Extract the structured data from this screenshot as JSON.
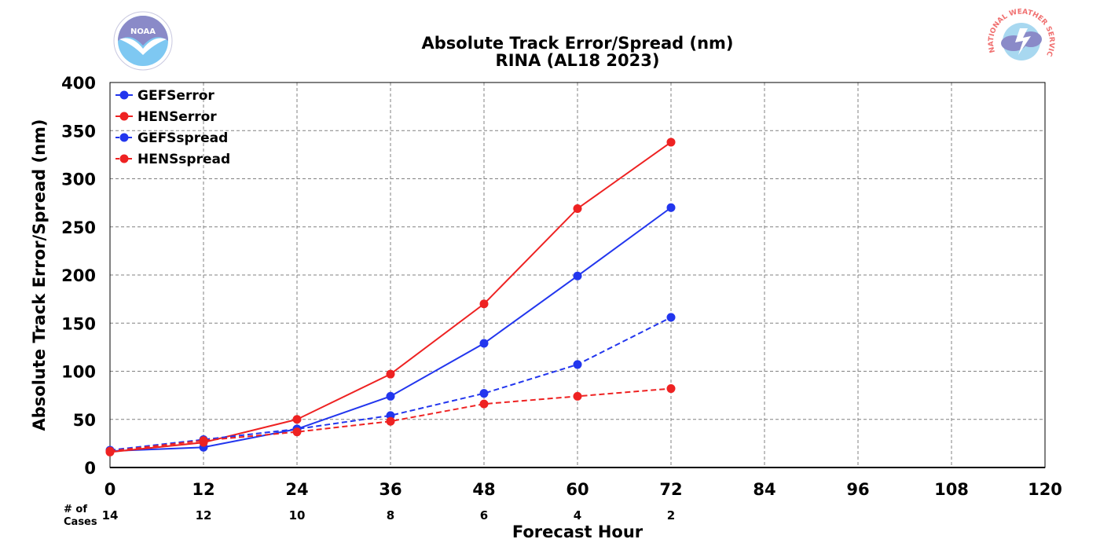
{
  "chart_data": {
    "type": "line",
    "title": "Absolute Track Error/Spread (nm)",
    "subtitle": "RINA (AL18 2023)",
    "xlabel": "Forecast Hour",
    "ylabel": "Absolute Track Error/Spread (nm)",
    "xlim": [
      0,
      120
    ],
    "ylim": [
      0,
      400
    ],
    "xticks": [
      0,
      12,
      24,
      36,
      48,
      60,
      72,
      84,
      96,
      108,
      120
    ],
    "yticks": [
      0,
      50,
      100,
      150,
      200,
      250,
      300,
      350,
      400
    ],
    "grid": true,
    "legend_position": "top-left",
    "cases_header_line1": "# of",
    "cases_header_line2": "Cases",
    "cases": [
      {
        "x": 0,
        "n": "14"
      },
      {
        "x": 12,
        "n": "12"
      },
      {
        "x": 24,
        "n": "10"
      },
      {
        "x": 36,
        "n": "8"
      },
      {
        "x": 48,
        "n": "6"
      },
      {
        "x": 60,
        "n": "4"
      },
      {
        "x": 72,
        "n": "2"
      }
    ],
    "x": [
      0,
      12,
      24,
      36,
      48,
      60,
      72
    ],
    "series": [
      {
        "name": "GEFSerror",
        "color": "#2236ee",
        "dash": false,
        "values": [
          17,
          21,
          40,
          74,
          129,
          199,
          270
        ]
      },
      {
        "name": "HENSerror",
        "color": "#ee2222",
        "dash": false,
        "values": [
          16,
          26,
          50,
          97,
          170,
          269,
          338
        ]
      },
      {
        "name": "GEFSspread",
        "color": "#2236ee",
        "dash": true,
        "values": [
          18,
          29,
          40,
          54,
          77,
          107,
          156
        ]
      },
      {
        "name": "HENSspread",
        "color": "#ee2222",
        "dash": true,
        "values": [
          17,
          28,
          37,
          48,
          66,
          74,
          82
        ]
      }
    ]
  },
  "logos": {
    "left": {
      "icon": "noaa-logo",
      "text": "NOAA",
      "ring_text": "NATIONAL OCEANIC AND ATMOSPHERIC ADMINISTRATION · U.S. DEPARTMENT OF COMMERCE",
      "colors": {
        "sky": "#7ec8f2",
        "bird": "#8a8ac8"
      }
    },
    "right": {
      "icon": "nws-logo",
      "ring_text": "NATIONAL WEATHER SERVICE",
      "colors": {
        "text": "#f07070",
        "cloud": "#8a8ac8",
        "sky": "#a8d8f0"
      }
    }
  }
}
